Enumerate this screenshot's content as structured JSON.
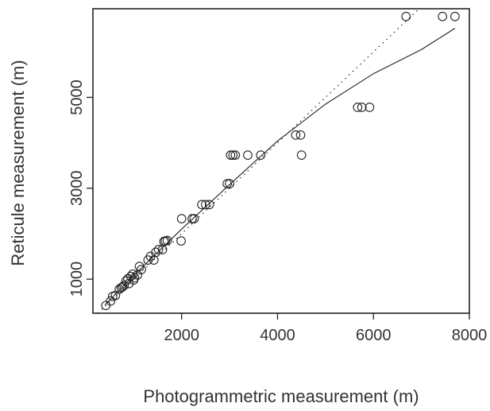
{
  "chart_data": {
    "type": "scatter",
    "title": "",
    "xlabel": "Photogrammetric measurement (m)",
    "ylabel": "Reticule measurement (m)",
    "xlim": [
      150,
      8000
    ],
    "ylim": [
      250,
      6950
    ],
    "xticks": [
      2000,
      4000,
      6000,
      8000
    ],
    "xtick_labels": [
      "2000",
      "4000",
      "6000",
      "8000"
    ],
    "yticks": [
      1000,
      3000,
      5000
    ],
    "ytick_labels": [
      "1000",
      "3000",
      "5000"
    ],
    "grid": false,
    "legend": "none",
    "points": [
      {
        "x": 420,
        "y": 420
      },
      {
        "x": 520,
        "y": 520
      },
      {
        "x": 560,
        "y": 620
      },
      {
        "x": 620,
        "y": 640
      },
      {
        "x": 700,
        "y": 780
      },
      {
        "x": 740,
        "y": 810
      },
      {
        "x": 770,
        "y": 830
      },
      {
        "x": 800,
        "y": 860
      },
      {
        "x": 840,
        "y": 960
      },
      {
        "x": 880,
        "y": 1010
      },
      {
        "x": 900,
        "y": 900
      },
      {
        "x": 940,
        "y": 1060
      },
      {
        "x": 980,
        "y": 1110
      },
      {
        "x": 1000,
        "y": 980
      },
      {
        "x": 1020,
        "y": 1030
      },
      {
        "x": 1080,
        "y": 1090
      },
      {
        "x": 1120,
        "y": 1280
      },
      {
        "x": 1160,
        "y": 1210
      },
      {
        "x": 1300,
        "y": 1420
      },
      {
        "x": 1350,
        "y": 1500
      },
      {
        "x": 1420,
        "y": 1420
      },
      {
        "x": 1460,
        "y": 1590
      },
      {
        "x": 1520,
        "y": 1650
      },
      {
        "x": 1600,
        "y": 1650
      },
      {
        "x": 1630,
        "y": 1830
      },
      {
        "x": 1660,
        "y": 1840
      },
      {
        "x": 1700,
        "y": 1850
      },
      {
        "x": 1990,
        "y": 1840
      },
      {
        "x": 2000,
        "y": 2330
      },
      {
        "x": 2220,
        "y": 2330
      },
      {
        "x": 2260,
        "y": 2330
      },
      {
        "x": 2420,
        "y": 2640
      },
      {
        "x": 2500,
        "y": 2640
      },
      {
        "x": 2580,
        "y": 2640
      },
      {
        "x": 2950,
        "y": 3100
      },
      {
        "x": 3000,
        "y": 3100
      },
      {
        "x": 3020,
        "y": 3730
      },
      {
        "x": 3070,
        "y": 3730
      },
      {
        "x": 3120,
        "y": 3730
      },
      {
        "x": 3380,
        "y": 3730
      },
      {
        "x": 3650,
        "y": 3730
      },
      {
        "x": 4380,
        "y": 4170
      },
      {
        "x": 4480,
        "y": 4170
      },
      {
        "x": 4500,
        "y": 3730
      },
      {
        "x": 5670,
        "y": 4780
      },
      {
        "x": 5760,
        "y": 4780
      },
      {
        "x": 5920,
        "y": 4780
      },
      {
        "x": 6680,
        "y": 6780
      },
      {
        "x": 7440,
        "y": 6780
      },
      {
        "x": 7700,
        "y": 6780
      }
    ],
    "fit_line": [
      {
        "x": 400,
        "y": 430
      },
      {
        "x": 1000,
        "y": 1080
      },
      {
        "x": 2000,
        "y": 2100
      },
      {
        "x": 3000,
        "y": 3080
      },
      {
        "x": 4000,
        "y": 4040
      },
      {
        "x": 5000,
        "y": 4850
      },
      {
        "x": 6000,
        "y": 5520
      },
      {
        "x": 7000,
        "y": 6050
      },
      {
        "x": 7700,
        "y": 6520
      }
    ],
    "reference_line": [
      {
        "x": 250,
        "y": 250
      },
      {
        "x": 6950,
        "y": 6950
      }
    ]
  }
}
